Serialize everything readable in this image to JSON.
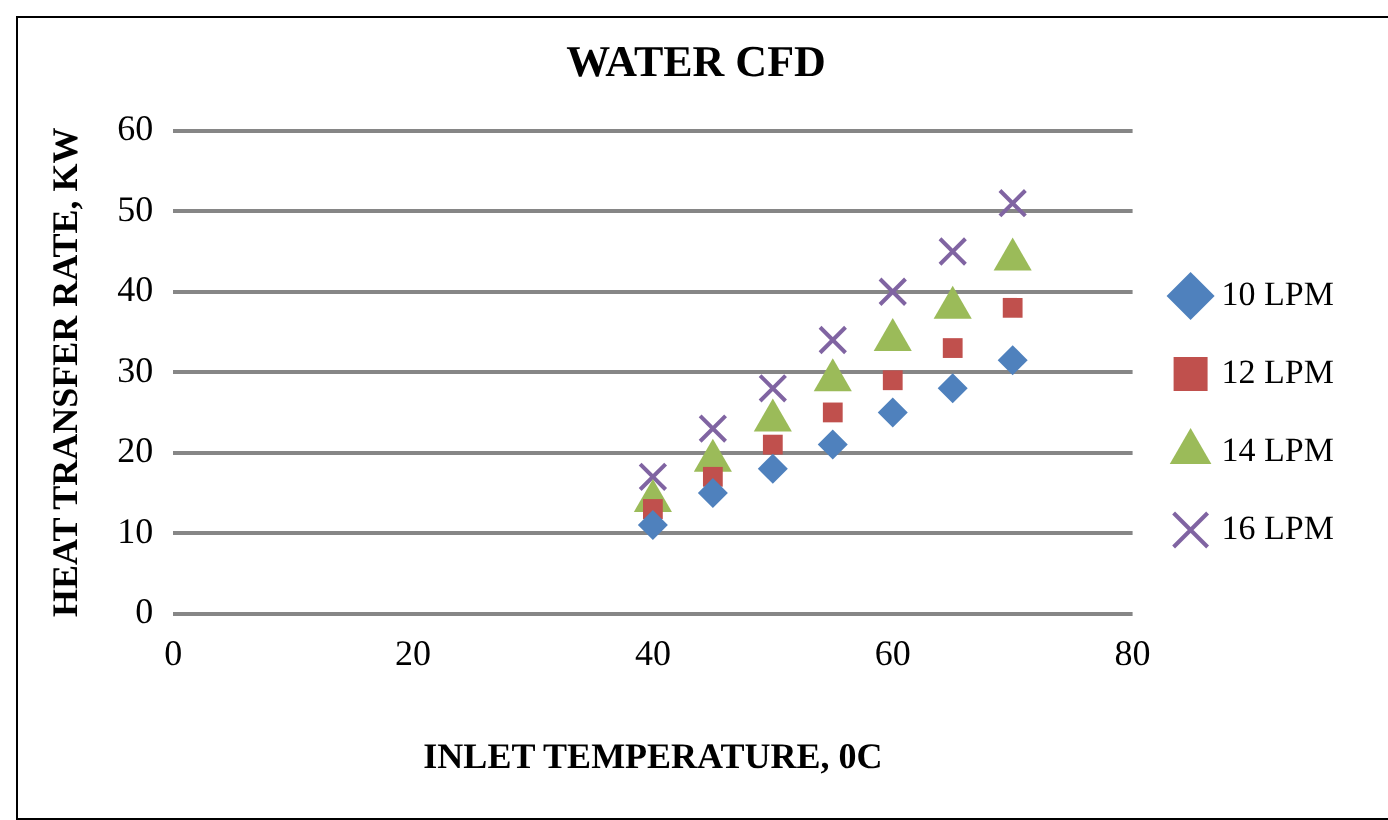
{
  "chart_data": {
    "type": "scatter",
    "title": "WATER CFD",
    "xlabel": "INLET TEMPERATURE, 0C",
    "ylabel": "HEAT TRANSFER RATE, KW",
    "x": [
      40,
      45,
      50,
      55,
      60,
      65,
      70
    ],
    "series": [
      {
        "name": "10 LPM",
        "color": "#4f81bd",
        "marker": "diamond",
        "values": [
          11,
          15,
          18,
          21,
          25,
          28,
          31.5
        ]
      },
      {
        "name": "12 LPM",
        "color": "#c0504d",
        "marker": "square",
        "values": [
          13,
          17,
          21,
          25,
          29,
          33,
          38
        ]
      },
      {
        "name": "14 LPM",
        "color": "#9bbb59",
        "marker": "triangle",
        "values": [
          14,
          19,
          24,
          29,
          34,
          38,
          44
        ]
      },
      {
        "name": "16 LPM",
        "color": "#8064a2",
        "marker": "cross",
        "values": [
          17,
          23,
          28,
          34,
          40,
          45,
          51
        ]
      }
    ],
    "xlim": [
      0,
      80
    ],
    "xticks": [
      0,
      20,
      40,
      60,
      80
    ],
    "ylim": [
      0,
      60
    ],
    "yticks": [
      0,
      10,
      20,
      30,
      40,
      50,
      60
    ],
    "grid": "y",
    "legend": "right"
  }
}
